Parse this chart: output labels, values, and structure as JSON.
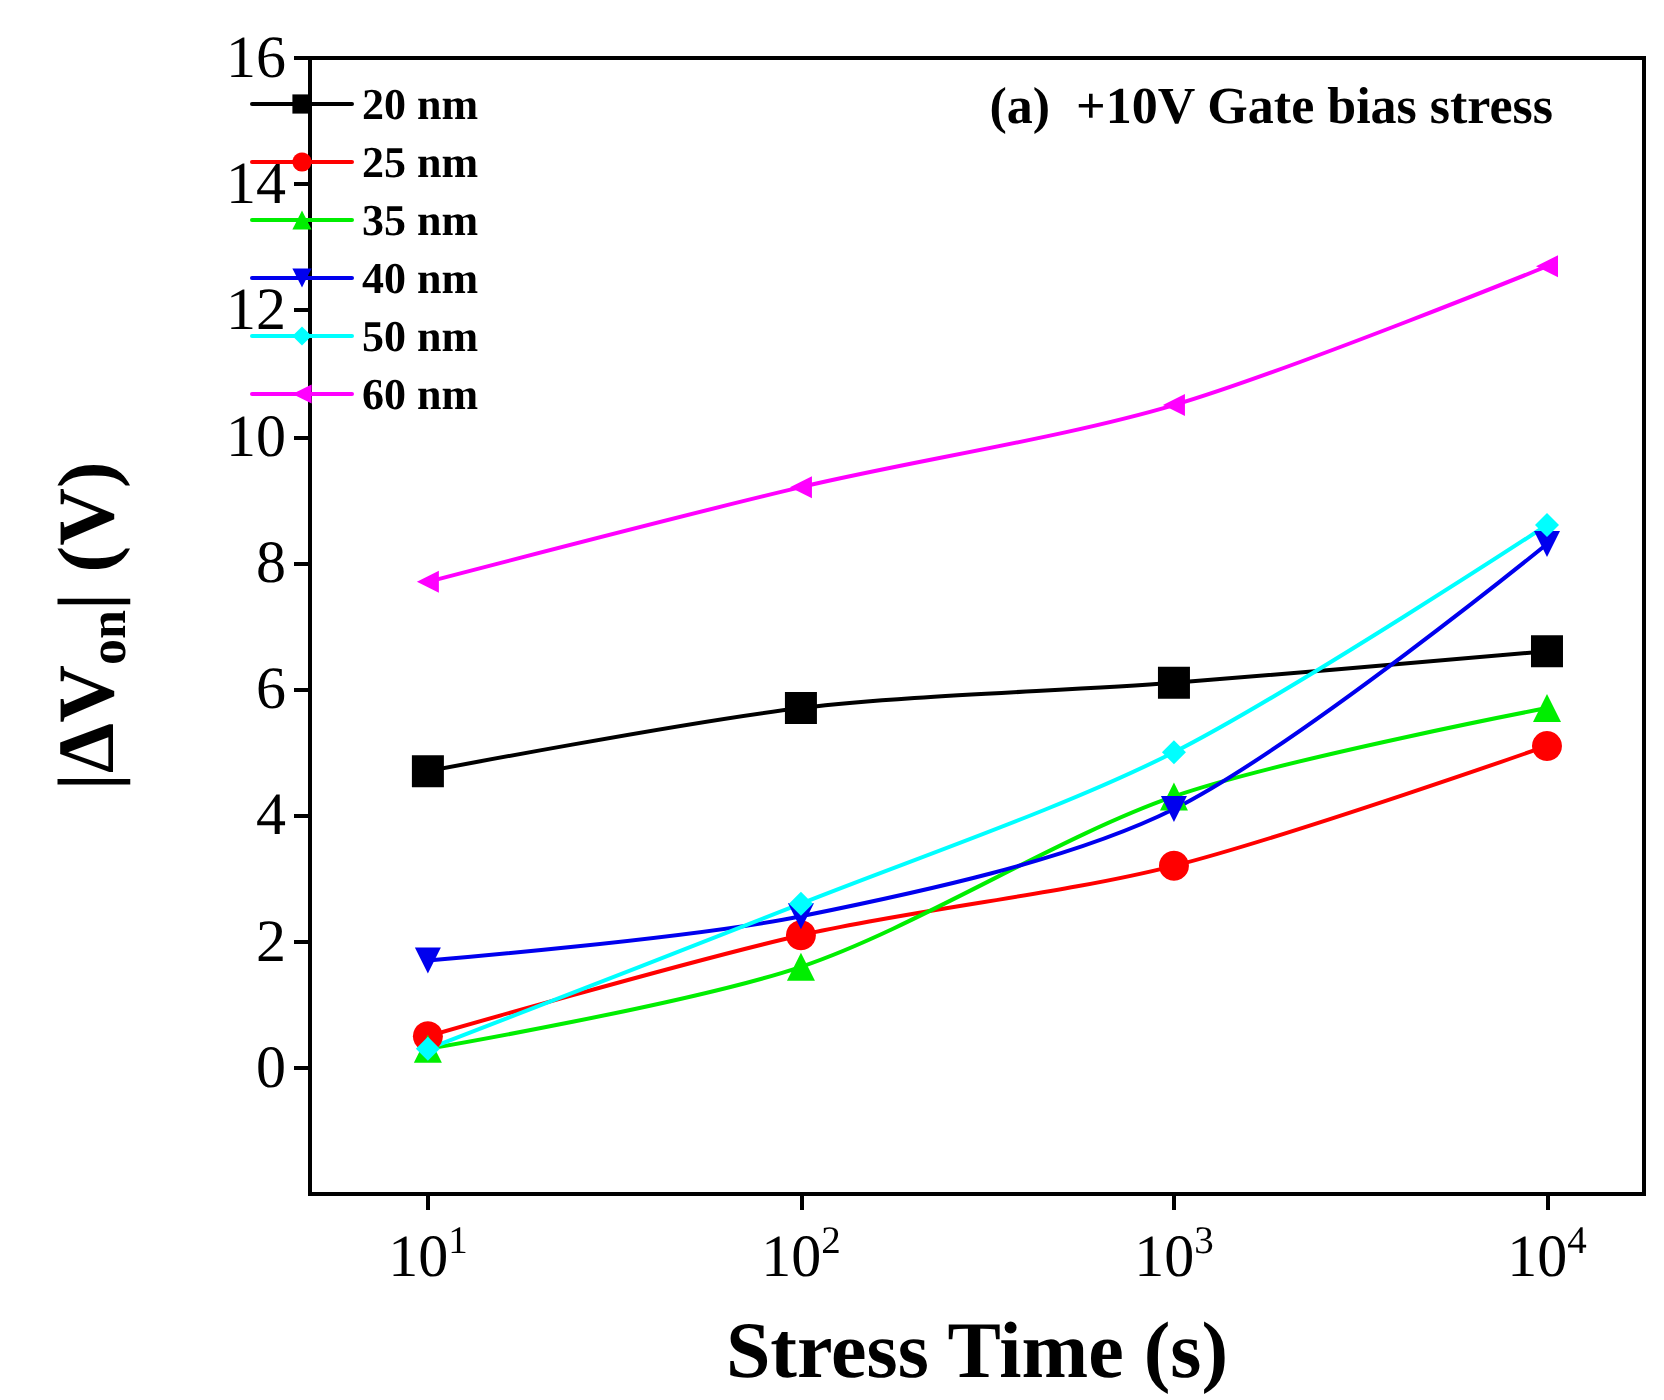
{
  "chart_data": {
    "type": "line",
    "xlabel": "Stress Time (s)",
    "ylabel": "|ΔV$_{on}$| (V)",
    "annotations": [
      "(a)  +10V Gate bias stress"
    ],
    "x": [
      10,
      100,
      1000,
      10000
    ],
    "log": "x",
    "xlim": [
      4.83,
      18200
    ],
    "xticks": [
      {
        "value": 10,
        "label": "10$^{1}$"
      },
      {
        "value": 100,
        "label": "10$^{2}$"
      },
      {
        "value": 1000,
        "label": "10$^{3}$"
      },
      {
        "value": 10000,
        "label": "10$^{4}$"
      }
    ],
    "ylim": [
      -2,
      16
    ],
    "yticks": [
      0,
      2,
      4,
      6,
      8,
      10,
      12,
      14,
      16
    ],
    "grid": false,
    "legend": "top left",
    "series": [
      {
        "name": "20 nm",
        "color": "#000000",
        "marker": "square",
        "values": [
          4.7,
          5.7,
          6.1,
          6.6
        ]
      },
      {
        "name": "25 nm",
        "color": "#ff0000",
        "marker": "circle",
        "values": [
          0.5,
          2.1,
          3.2,
          5.1
        ]
      },
      {
        "name": "35 nm",
        "color": "#00ee00",
        "marker": "triangle",
        "values": [
          0.3,
          1.6,
          4.3,
          5.7
        ]
      },
      {
        "name": "40 nm",
        "color": "#0000ee",
        "marker": "triangle-down",
        "values": [
          1.7,
          2.4,
          4.1,
          8.3
        ]
      },
      {
        "name": "50 nm",
        "color": "#00ffff",
        "marker": "diamond",
        "values": [
          0.3,
          2.6,
          5.0,
          8.6
        ]
      },
      {
        "name": "60 nm",
        "color": "#ff00ff",
        "marker": "triangle-left",
        "values": [
          7.7,
          9.2,
          10.5,
          12.7
        ]
      }
    ]
  }
}
